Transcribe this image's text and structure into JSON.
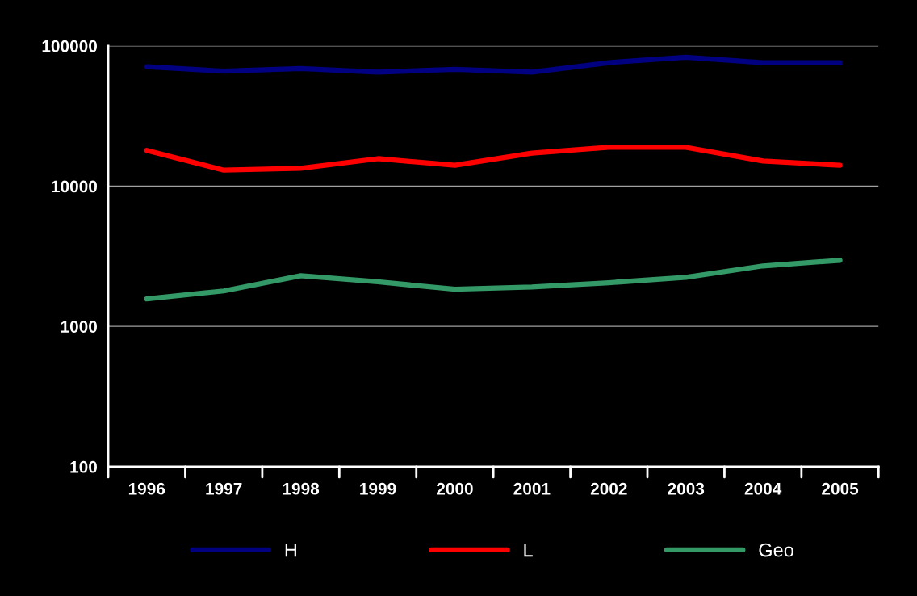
{
  "chart_data": {
    "type": "line",
    "categories": [
      "1996",
      "1997",
      "1998",
      "1999",
      "2000",
      "2001",
      "2002",
      "2003",
      "2004",
      "2005"
    ],
    "series": [
      {
        "name": "H",
        "color": "#000080",
        "values": [
          71000,
          66000,
          69000,
          65000,
          68000,
          65000,
          76000,
          83000,
          76000,
          76000
        ]
      },
      {
        "name": "L",
        "color": "#ff0000",
        "values": [
          18000,
          13000,
          13400,
          15700,
          14100,
          17200,
          18900,
          18900,
          15100,
          14100
        ]
      },
      {
        "name": "Geo",
        "color": "#339966",
        "values": [
          1570,
          1790,
          2300,
          2080,
          1840,
          1910,
          2050,
          2240,
          2700,
          2960
        ]
      }
    ],
    "log": "y",
    "ylim": [
      100,
      100000
    ],
    "yticks": [
      100,
      1000,
      10000,
      100000
    ],
    "grid": "y",
    "legend": "bottom",
    "marker": "none",
    "line_style": "solid"
  }
}
